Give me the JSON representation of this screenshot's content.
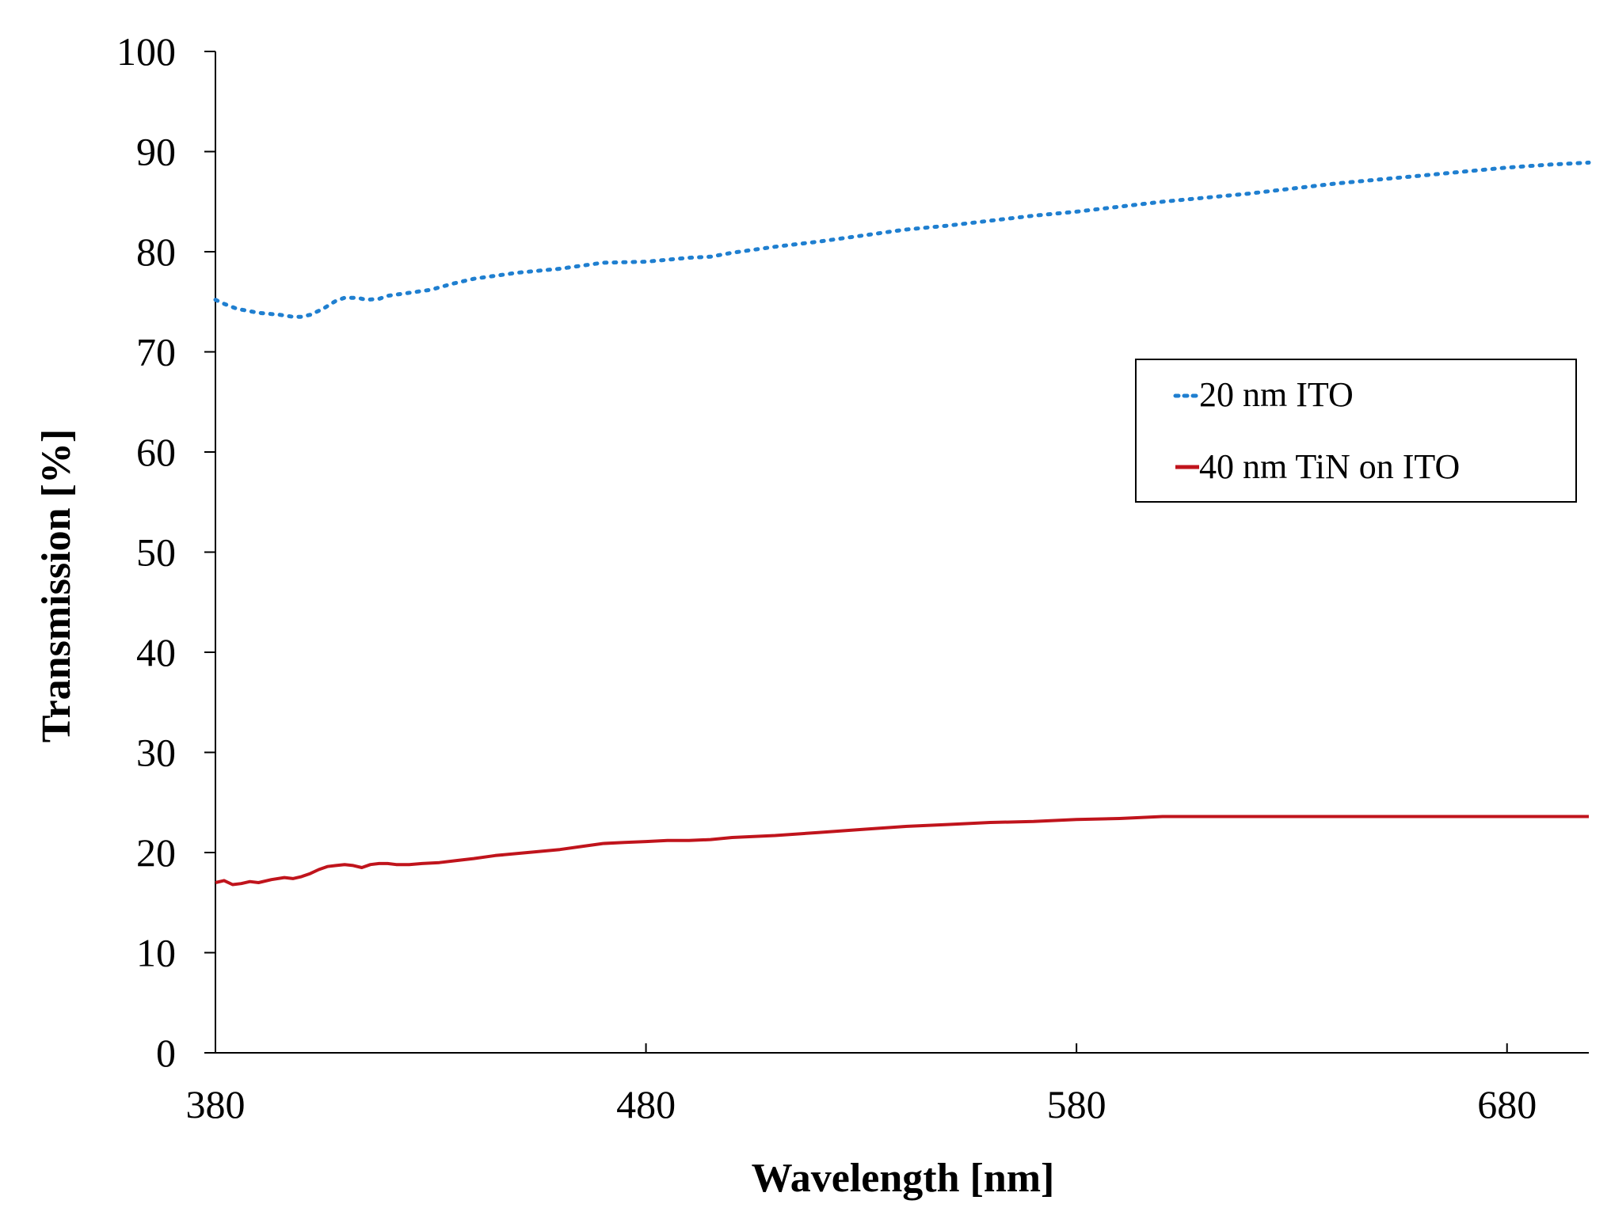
{
  "chart_data": {
    "type": "line",
    "title": "",
    "xlabel": "Wavelength [nm]",
    "ylabel": "Transmission [%]",
    "xlim": [
      380,
      699
    ],
    "ylim": [
      0,
      100
    ],
    "xticks": [
      380,
      480,
      580,
      680
    ],
    "yticks": [
      0,
      10,
      20,
      30,
      40,
      50,
      60,
      70,
      80,
      90,
      100
    ],
    "grid": false,
    "legend_position": "right, upper-middle",
    "series": [
      {
        "name": "20 nm ITO",
        "color": "#1f7fd0",
        "style": "dotted",
        "x": [
          380,
          382,
          385,
          390,
          395,
          398,
          400,
          402,
          405,
          408,
          410,
          413,
          415,
          418,
          420,
          425,
          430,
          435,
          440,
          445,
          450,
          460,
          470,
          480,
          485,
          490,
          495,
          500,
          510,
          520,
          530,
          540,
          550,
          560,
          570,
          580,
          590,
          600,
          610,
          620,
          630,
          640,
          650,
          660,
          670,
          680,
          690,
          699
        ],
        "y": [
          75.2,
          74.8,
          74.3,
          73.9,
          73.7,
          73.5,
          73.5,
          73.7,
          74.3,
          75.1,
          75.4,
          75.4,
          75.2,
          75.3,
          75.6,
          75.9,
          76.2,
          76.8,
          77.3,
          77.6,
          77.9,
          78.3,
          78.9,
          79.0,
          79.2,
          79.4,
          79.5,
          79.9,
          80.5,
          81.0,
          81.6,
          82.2,
          82.6,
          83.1,
          83.6,
          84.0,
          84.5,
          85.0,
          85.4,
          85.8,
          86.3,
          86.8,
          87.2,
          87.6,
          88.0,
          88.4,
          88.7,
          88.9
        ]
      },
      {
        "name": "40 nm TiN on ITO",
        "color": "#c0141c",
        "style": "solid",
        "x": [
          380,
          382,
          384,
          386,
          388,
          390,
          393,
          396,
          398,
          400,
          402,
          404,
          406,
          408,
          410,
          412,
          414,
          416,
          418,
          420,
          422,
          425,
          428,
          432,
          436,
          440,
          445,
          450,
          455,
          460,
          465,
          470,
          475,
          480,
          485,
          490,
          495,
          500,
          510,
          520,
          530,
          540,
          550,
          560,
          570,
          580,
          590,
          600,
          620,
          640,
          660,
          680,
          699
        ],
        "y": [
          17.0,
          17.2,
          16.8,
          16.9,
          17.1,
          17.0,
          17.3,
          17.5,
          17.4,
          17.6,
          17.9,
          18.3,
          18.6,
          18.7,
          18.8,
          18.7,
          18.5,
          18.8,
          18.9,
          18.9,
          18.8,
          18.8,
          18.9,
          19.0,
          19.2,
          19.4,
          19.7,
          19.9,
          20.1,
          20.3,
          20.6,
          20.9,
          21.0,
          21.1,
          21.2,
          21.2,
          21.3,
          21.5,
          21.7,
          22.0,
          22.3,
          22.6,
          22.8,
          23.0,
          23.1,
          23.3,
          23.4,
          23.6,
          23.6,
          23.6,
          23.6,
          23.6,
          23.6
        ]
      }
    ]
  }
}
